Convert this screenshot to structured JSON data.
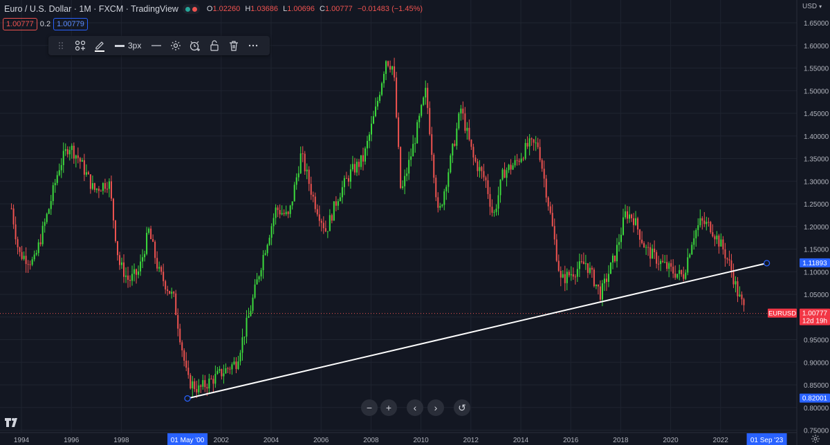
{
  "header": {
    "symbol_title": "Euro / U.S. Dollar · 1M · FXCM · TradingView",
    "ohlc": {
      "o_label": "O",
      "o": "1.02260",
      "h_label": "H",
      "h": "1.03686",
      "l_label": "L",
      "l": "1.00696",
      "c_label": "C",
      "c": "1.00777",
      "change": "−0.01483 (−1.45%)"
    },
    "bid": "1.00777",
    "spread": "0.2",
    "ask": "1.00779",
    "currency": "USD"
  },
  "drawing_toolbar": {
    "line_width_label": "3px",
    "icons": [
      "drag-handle-icon",
      "add-template-icon",
      "pencil-icon",
      "line-width-icon",
      "line-style-icon",
      "settings-icon",
      "alert-icon",
      "lock-icon",
      "delete-icon",
      "more-icon"
    ]
  },
  "chart_data": {
    "type": "candlestick",
    "symbol": "EURUSD",
    "interval": "1M",
    "x_range": [
      1993.3,
      2023.9
    ],
    "ylim": [
      0.75,
      1.65
    ],
    "y_ticks": [
      "1.65000",
      "1.60000",
      "1.55000",
      "1.50000",
      "1.45000",
      "1.40000",
      "1.35000",
      "1.30000",
      "1.25000",
      "1.20000",
      "1.15000",
      "1.10000",
      "1.05000",
      "1.00000",
      "0.95000",
      "0.90000",
      "0.85000",
      "0.80000",
      "0.75000"
    ],
    "x_ticks": [
      {
        "label": "1994",
        "x": 1993.7
      },
      {
        "label": "1996",
        "x": 1995.7
      },
      {
        "label": "1998",
        "x": 1997.7
      },
      {
        "label": "2002",
        "x": 2001.7
      },
      {
        "label": "2004",
        "x": 2003.7
      },
      {
        "label": "2006",
        "x": 2005.7
      },
      {
        "label": "2008",
        "x": 2007.7
      },
      {
        "label": "2010",
        "x": 2009.7
      },
      {
        "label": "2012",
        "x": 2011.7
      },
      {
        "label": "2014",
        "x": 2013.7
      },
      {
        "label": "2016",
        "x": 2015.7
      },
      {
        "label": "2018",
        "x": 2017.7
      },
      {
        "label": "2020",
        "x": 2019.7
      },
      {
        "label": "2022",
        "x": 2021.7
      }
    ],
    "path_points": [
      [
        1993.3,
        1.24
      ],
      [
        1993.6,
        1.14
      ],
      [
        1994.2,
        1.12
      ],
      [
        1994.8,
        1.24
      ],
      [
        1995.2,
        1.33
      ],
      [
        1995.6,
        1.38
      ],
      [
        1996.0,
        1.35
      ],
      [
        1996.6,
        1.28
      ],
      [
        1997.2,
        1.3
      ],
      [
        1997.6,
        1.12
      ],
      [
        1998.0,
        1.08
      ],
      [
        1998.4,
        1.1
      ],
      [
        1998.8,
        1.19
      ],
      [
        1999.2,
        1.1
      ],
      [
        1999.8,
        1.04
      ],
      [
        2000.35,
        0.86
      ],
      [
        2000.8,
        0.84
      ],
      [
        2001.3,
        0.86
      ],
      [
        2001.8,
        0.88
      ],
      [
        2002.3,
        0.9
      ],
      [
        2002.8,
        1.0
      ],
      [
        2003.4,
        1.14
      ],
      [
        2003.9,
        1.24
      ],
      [
        2004.4,
        1.22
      ],
      [
        2004.9,
        1.36
      ],
      [
        2005.4,
        1.26
      ],
      [
        2005.9,
        1.19
      ],
      [
        2006.4,
        1.27
      ],
      [
        2006.9,
        1.32
      ],
      [
        2007.4,
        1.35
      ],
      [
        2007.9,
        1.46
      ],
      [
        2008.3,
        1.57
      ],
      [
        2008.6,
        1.55
      ],
      [
        2008.9,
        1.27
      ],
      [
        2009.4,
        1.38
      ],
      [
        2009.9,
        1.5
      ],
      [
        2010.4,
        1.22
      ],
      [
        2010.9,
        1.35
      ],
      [
        2011.3,
        1.46
      ],
      [
        2011.8,
        1.35
      ],
      [
        2012.3,
        1.3
      ],
      [
        2012.6,
        1.22
      ],
      [
        2013.0,
        1.32
      ],
      [
        2013.5,
        1.34
      ],
      [
        2014.0,
        1.38
      ],
      [
        2014.4,
        1.38
      ],
      [
        2014.9,
        1.22
      ],
      [
        2015.3,
        1.08
      ],
      [
        2015.8,
        1.1
      ],
      [
        2016.3,
        1.12
      ],
      [
        2016.9,
        1.05
      ],
      [
        2017.5,
        1.14
      ],
      [
        2017.9,
        1.23
      ],
      [
        2018.2,
        1.22
      ],
      [
        2018.7,
        1.15
      ],
      [
        2019.3,
        1.12
      ],
      [
        2019.8,
        1.1
      ],
      [
        2020.2,
        1.09
      ],
      [
        2020.6,
        1.18
      ],
      [
        2020.9,
        1.21
      ],
      [
        2021.3,
        1.2
      ],
      [
        2021.8,
        1.15
      ],
      [
        2022.1,
        1.11
      ],
      [
        2022.4,
        1.05
      ],
      [
        2022.7,
        1.01
      ]
    ],
    "trendline": {
      "start": [
        2000.35,
        0.82001
      ],
      "end": [
        2023.55,
        1.11893
      ]
    },
    "price_labels": [
      {
        "kind": "trend-end",
        "value": "1.11893",
        "price": 1.11893,
        "color": "#2962ff"
      },
      {
        "kind": "last",
        "value": "1.00777",
        "countdown": "12d 19h",
        "price": 1.00777,
        "color": "#f23645"
      },
      {
        "kind": "trend-start",
        "value": "0.82001",
        "price": 0.82001,
        "color": "#2962ff"
      }
    ],
    "symbol_tag": "EURUSD",
    "time_labels": [
      {
        "value": "01 May '00",
        "x": 2000.35
      },
      {
        "value": "01 Sep '23",
        "x": 2023.55
      }
    ],
    "colors": {
      "up": "#26a69a",
      "up_bright": "#3ddc3d",
      "down": "#ef5350",
      "trend": "#ffffff",
      "selection": "#2962ff",
      "background": "#131722",
      "grid": "#1f2430"
    }
  }
}
